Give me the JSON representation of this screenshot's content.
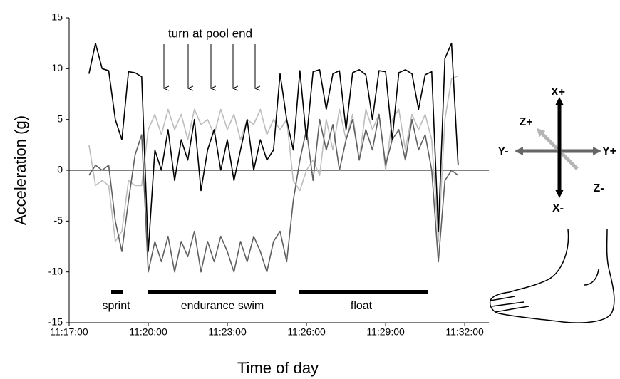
{
  "chart_data": {
    "type": "line",
    "ylabel": "Acceleration (g)",
    "xlabel": "Time of day",
    "xlim": [
      "11:17:00",
      "11:32:55"
    ],
    "xticks": [
      "11:17:00",
      "11:20:00",
      "11:23:00",
      "11:26:00",
      "11:29:00",
      "11:32:00"
    ],
    "ylim": [
      -15,
      15
    ],
    "yticks": [
      -15,
      -10,
      -5,
      0,
      5,
      10,
      15
    ],
    "hline": 0,
    "annotations": {
      "turns": "turn at pool end",
      "sprint": "sprint",
      "endurance": "endurance swim",
      "float": "float"
    },
    "x": [
      "11:17:45",
      "11:18:00",
      "11:18:15",
      "11:18:30",
      "11:18:45",
      "11:19:00",
      "11:19:15",
      "11:19:30",
      "11:19:45",
      "11:20:00",
      "11:20:15",
      "11:20:30",
      "11:20:45",
      "11:21:00",
      "11:21:15",
      "11:21:30",
      "11:21:45",
      "11:22:00",
      "11:22:15",
      "11:22:30",
      "11:22:45",
      "11:23:00",
      "11:23:15",
      "11:23:30",
      "11:23:45",
      "11:24:00",
      "11:24:15",
      "11:24:30",
      "11:24:45",
      "11:25:00",
      "11:25:15",
      "11:25:30",
      "11:25:45",
      "11:26:00",
      "11:26:15",
      "11:26:30",
      "11:26:45",
      "11:27:00",
      "11:27:15",
      "11:27:30",
      "11:27:45",
      "11:28:00",
      "11:28:15",
      "11:28:30",
      "11:28:45",
      "11:29:00",
      "11:29:15",
      "11:29:30",
      "11:29:45",
      "11:30:00",
      "11:30:15",
      "11:30:30",
      "11:30:45",
      "11:31:00",
      "11:31:15",
      "11:31:30",
      "11:31:45"
    ],
    "series": [
      {
        "color": "#bdbdbd",
        "values": [
          2.5,
          -1.5,
          -1,
          -1.5,
          -7,
          -6,
          -1,
          -1.5,
          -1.5,
          4,
          5.5,
          3.5,
          6,
          4,
          5.5,
          3,
          6,
          4.5,
          5,
          3.5,
          6,
          4,
          5.5,
          3,
          5,
          4.5,
          6,
          3.5,
          5,
          4,
          5,
          -1,
          -2,
          0,
          1,
          -0.5,
          5,
          2,
          6,
          3,
          5.5,
          1,
          6,
          4,
          5.5,
          0,
          5,
          6,
          2,
          5.5,
          4,
          5.5,
          3,
          -7,
          5,
          9,
          9.3
        ]
      },
      {
        "color": "#606060",
        "values": [
          -0.5,
          0.5,
          0,
          0.5,
          -5,
          -8,
          -3,
          1.5,
          3.5,
          -10,
          -7,
          -9,
          -6.5,
          -10,
          -7,
          -8.5,
          -6,
          -10,
          -7,
          -9,
          -6.5,
          -8,
          -10,
          -7,
          -9,
          -6.5,
          -8,
          -10,
          -7,
          -6,
          -9,
          -3,
          1,
          4,
          -1,
          5,
          2,
          4.5,
          0,
          3,
          5,
          1,
          4,
          2,
          5.5,
          0.5,
          3,
          4,
          1,
          5,
          2,
          3.5,
          0,
          -9,
          -1,
          0,
          -0.5
        ]
      },
      {
        "color": "#000000",
        "values": [
          9.5,
          12.5,
          10,
          9.8,
          5,
          3,
          9.7,
          9.6,
          9.2,
          -8,
          2,
          0,
          4,
          -1,
          3,
          1,
          5,
          -2,
          2,
          4,
          0,
          3,
          -1,
          2,
          5,
          0,
          3,
          1,
          2,
          9.5,
          5,
          2,
          9.8,
          3,
          9.7,
          9.9,
          6,
          9.5,
          9.8,
          4,
          9.6,
          9.9,
          9.4,
          5,
          9.8,
          9.7,
          3,
          9.6,
          9.9,
          9.5,
          6,
          9.4,
          9.7,
          -6,
          11,
          12.5,
          0.5
        ]
      }
    ]
  },
  "axes_diagram": {
    "x_plus": "X+",
    "x_minus": "X-",
    "y_minus": "Y-",
    "y_plus": "Y+",
    "z_plus": "Z+",
    "z_minus": "Z-"
  }
}
